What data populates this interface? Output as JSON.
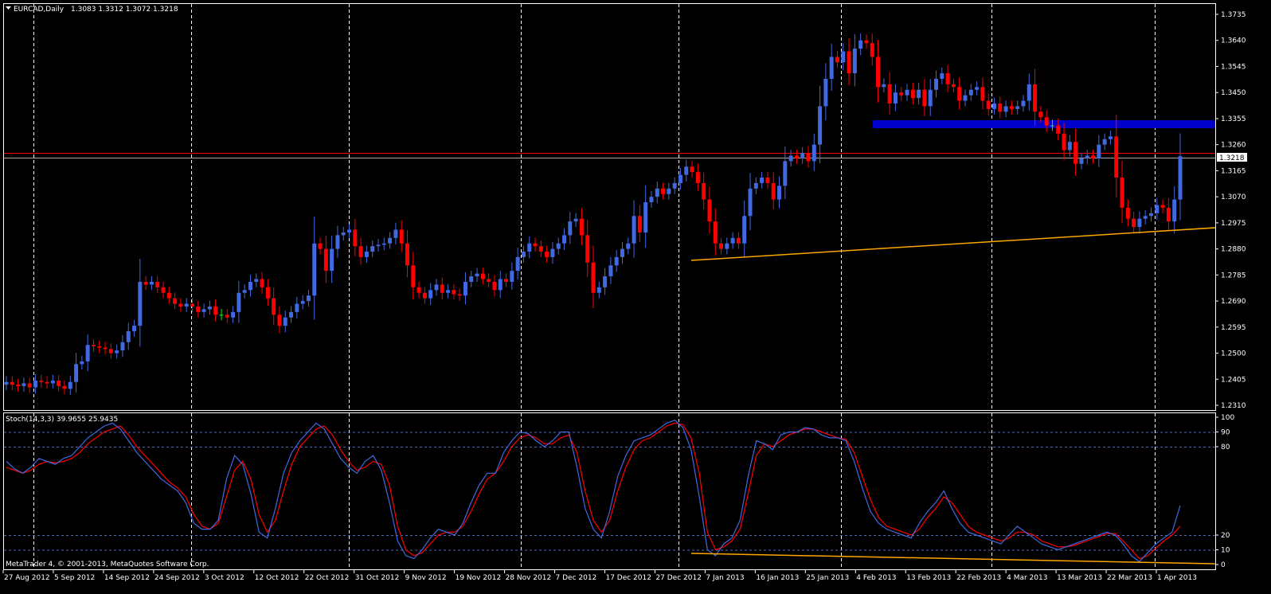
{
  "header": {
    "menu_arrow": "dropdown-triangle",
    "symbol": "EURCAD,Daily",
    "ohlc": "1.3083 1.3312 1.3072 1.3218"
  },
  "indicator": {
    "label": "Stoch(14,3,3) 39.9655 25.9435"
  },
  "copyright": "MetaTrader 4, © 2001-2013, MetaQuotes Software Corp.",
  "current_price_label": "1.3218",
  "colors": {
    "background": "#000000",
    "bull": "#4169e1",
    "bear": "#ff0000",
    "doji": "#00ff00",
    "grid": "#ffffff",
    "stoch_main": "#4169e1",
    "stoch_signal": "#ff0000",
    "trendline": "#ffa500",
    "zone": "#0000cd",
    "resistance": "#ff0000"
  },
  "chart_data": [
    {
      "type": "candlestick",
      "symbol": "EURCAD",
      "timeframe": "Daily",
      "ylim": [
        1.231,
        1.3735
      ],
      "y_ticks": [
        "1.3735",
        "1.3640",
        "1.3545",
        "1.3450",
        "1.3355",
        "1.3260",
        "1.3165",
        "1.3070",
        "1.2975",
        "1.2880",
        "1.2785",
        "1.2690",
        "1.2595",
        "1.2500",
        "1.2405",
        "1.2310"
      ],
      "x_ticks": [
        "27 Aug 2012",
        "5 Sep 2012",
        "14 Sep 2012",
        "24 Sep 2012",
        "3 Oct 2012",
        "12 Oct 2012",
        "22 Oct 2012",
        "31 Oct 2012",
        "9 Nov 2012",
        "19 Nov 2012",
        "28 Nov 2012",
        "7 Dec 2012",
        "17 Dec 2012",
        "27 Dec 2012",
        "7 Jan 2013",
        "16 Jan 2013",
        "25 Jan 2013",
        "4 Feb 2013",
        "13 Feb 2013",
        "22 Feb 2013",
        "4 Mar 2013",
        "13 Mar 2013",
        "22 Mar 2013",
        "1 Apr 2013"
      ],
      "close": [
        1.2395,
        1.2385,
        1.238,
        1.239,
        1.2375,
        1.24,
        1.2395,
        1.239,
        1.24,
        1.238,
        1.237,
        1.2395,
        1.246,
        1.247,
        1.253,
        1.2525,
        1.252,
        1.2515,
        1.25,
        1.251,
        1.254,
        1.258,
        1.26,
        1.276,
        1.275,
        1.276,
        1.274,
        1.272,
        1.27,
        1.268,
        1.267,
        1.268,
        1.267,
        1.265,
        1.266,
        1.267,
        1.264,
        1.264,
        1.263,
        1.265,
        1.272,
        1.273,
        1.276,
        1.277,
        1.274,
        1.27,
        1.264,
        1.26,
        1.263,
        1.265,
        1.268,
        1.269,
        1.271,
        1.29,
        1.288,
        1.28,
        1.288,
        1.293,
        1.294,
        1.295,
        1.289,
        1.285,
        1.287,
        1.289,
        1.2895,
        1.29,
        1.292,
        1.295,
        1.29,
        1.282,
        1.274,
        1.272,
        1.27,
        1.273,
        1.275,
        1.272,
        1.273,
        1.2715,
        1.271,
        1.276,
        1.278,
        1.279,
        1.277,
        1.276,
        1.273,
        1.277,
        1.276,
        1.28,
        1.285,
        1.287,
        1.29,
        1.289,
        1.287,
        1.285,
        1.288,
        1.29,
        1.293,
        1.298,
        1.299,
        1.293,
        1.283,
        1.272,
        1.274,
        1.278,
        1.282,
        1.285,
        1.288,
        1.29,
        1.3,
        1.294,
        1.305,
        1.307,
        1.31,
        1.308,
        1.31,
        1.312,
        1.315,
        1.318,
        1.316,
        1.312,
        1.306,
        1.298,
        1.29,
        1.288,
        1.29,
        1.292,
        1.29,
        1.3,
        1.31,
        1.312,
        1.314,
        1.312,
        1.306,
        1.311,
        1.32,
        1.322,
        1.321,
        1.323,
        1.32,
        1.326,
        1.34,
        1.35,
        1.358,
        1.356,
        1.36,
        1.352,
        1.361,
        1.364,
        1.363,
        1.358,
        1.347,
        1.348,
        1.341,
        1.345,
        1.344,
        1.346,
        1.343,
        1.346,
        1.34,
        1.346,
        1.35,
        1.352,
        1.348,
        1.347,
        1.342,
        1.344,
        1.346,
        1.347,
        1.342,
        1.339,
        1.341,
        1.338,
        1.34,
        1.339,
        1.34,
        1.342,
        1.348,
        1.338,
        1.336,
        1.333,
        1.333,
        1.33,
        1.324,
        1.327,
        1.319,
        1.321,
        1.322,
        1.321,
        1.326,
        1.328,
        1.329,
        1.314,
        1.303,
        1.299,
        1.296,
        1.299,
        1.3,
        1.301,
        1.304,
        1.303,
        1.298,
        1.306,
        1.3218
      ]
    },
    {
      "type": "line",
      "indicator": "Stochastic",
      "params": "14,3,3",
      "main_value": 39.9655,
      "signal_value": 25.9435,
      "ylim": [
        0,
        100
      ],
      "y_ticks": [
        "100",
        "90",
        "80",
        "20",
        "10",
        "0"
      ],
      "levels": [
        90,
        80,
        20,
        10
      ],
      "series": [
        {
          "name": "main",
          "values": [
            70,
            65,
            62,
            66,
            72,
            70,
            68,
            72,
            74,
            80,
            86,
            90,
            94,
            96,
            92,
            84,
            76,
            70,
            64,
            58,
            54,
            50,
            42,
            28,
            24,
            24,
            30,
            58,
            74,
            68,
            48,
            22,
            18,
            38,
            62,
            76,
            84,
            90,
            96,
            92,
            82,
            72,
            66,
            62,
            70,
            74,
            64,
            42,
            16,
            6,
            4,
            10,
            18,
            24,
            22,
            20,
            28,
            42,
            54,
            62,
            62,
            76,
            84,
            90,
            89,
            84,
            80,
            84,
            90,
            90,
            66,
            38,
            24,
            18,
            36,
            60,
            74,
            84,
            86,
            88,
            92,
            96,
            98,
            93,
            78,
            46,
            10,
            6,
            14,
            18,
            30,
            60,
            84,
            82,
            78,
            88,
            90,
            90,
            93,
            92,
            88,
            86,
            86,
            84,
            70,
            52,
            36,
            28,
            24,
            22,
            20,
            18,
            28,
            36,
            42,
            50,
            38,
            28,
            22,
            20,
            18,
            16,
            14,
            20,
            26,
            22,
            18,
            14,
            12,
            10,
            12,
            14,
            16,
            18,
            20,
            22,
            20,
            14,
            6,
            2,
            8,
            14,
            18,
            22,
            40
          ]
        },
        {
          "name": "signal",
          "values": [
            66,
            64,
            62,
            64,
            68,
            70,
            69,
            70,
            72,
            76,
            82,
            86,
            90,
            92,
            94,
            88,
            80,
            74,
            68,
            62,
            56,
            52,
            46,
            34,
            26,
            24,
            28,
            46,
            64,
            70,
            58,
            34,
            22,
            30,
            50,
            68,
            80,
            86,
            92,
            94,
            88,
            78,
            70,
            64,
            66,
            70,
            68,
            54,
            26,
            10,
            6,
            8,
            14,
            20,
            22,
            22,
            26,
            36,
            48,
            58,
            62,
            70,
            80,
            86,
            88,
            86,
            82,
            82,
            86,
            88,
            76,
            50,
            30,
            22,
            30,
            50,
            66,
            78,
            84,
            86,
            90,
            94,
            96,
            95,
            86,
            62,
            22,
            10,
            12,
            16,
            24,
            48,
            74,
            82,
            80,
            84,
            88,
            90,
            92,
            92,
            90,
            88,
            86,
            85,
            76,
            60,
            44,
            32,
            26,
            24,
            22,
            20,
            24,
            32,
            38,
            46,
            42,
            34,
            26,
            22,
            20,
            18,
            16,
            18,
            22,
            22,
            20,
            16,
            14,
            12,
            12,
            13,
            15,
            17,
            19,
            21,
            21,
            16,
            10,
            4,
            6,
            11,
            16,
            20,
            26
          ]
        }
      ]
    }
  ]
}
